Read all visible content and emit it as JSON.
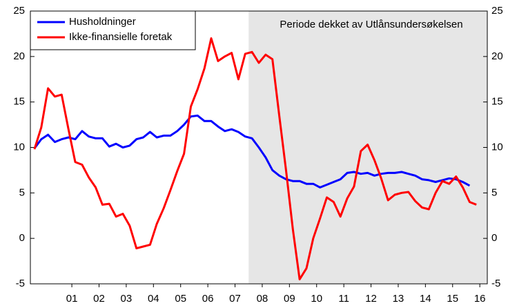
{
  "chart_data": {
    "type": "line",
    "annotation": "Periode dekket av Utlånsundersøkelsen",
    "shade": {
      "from": 2007.875,
      "color": "#e6e6e6"
    },
    "x": [
      2000,
      2000.25,
      2000.5,
      2000.75,
      2001,
      2001.25,
      2001.5,
      2001.75,
      2002,
      2002.25,
      2002.5,
      2002.75,
      2003,
      2003.25,
      2003.5,
      2003.75,
      2004,
      2004.25,
      2004.5,
      2004.75,
      2005,
      2005.25,
      2005.5,
      2005.75,
      2006,
      2006.25,
      2006.5,
      2006.75,
      2007,
      2007.25,
      2007.5,
      2007.75,
      2008,
      2008.25,
      2008.5,
      2008.75,
      2009,
      2009.25,
      2009.5,
      2009.75,
      2010,
      2010.25,
      2010.5,
      2010.75,
      2011,
      2011.25,
      2011.5,
      2011.75,
      2012,
      2012.25,
      2012.5,
      2012.75,
      2013,
      2013.25,
      2013.5,
      2013.75,
      2014,
      2014.25,
      2014.5,
      2014.75,
      2015,
      2015.25,
      2015.5,
      2015.75,
      2016,
      2016.25
    ],
    "series": [
      {
        "name": "Husholdninger",
        "color": "#0000ff",
        "values": [
          9.9,
          10.9,
          11.4,
          10.6,
          10.9,
          11.1,
          10.9,
          11.8,
          11.2,
          11.0,
          11.0,
          10.1,
          10.4,
          10.0,
          10.2,
          10.9,
          11.1,
          11.7,
          11.1,
          11.3,
          11.3,
          11.8,
          12.5,
          13.4,
          13.5,
          12.9,
          12.9,
          12.3,
          11.8,
          12.0,
          11.7,
          11.2,
          11.0,
          10.0,
          8.9,
          7.5,
          6.9,
          6.5,
          6.3,
          6.3,
          6.0,
          6.0,
          5.6,
          5.9,
          6.2,
          6.5,
          7.2,
          7.3,
          7.1,
          7.2,
          6.9,
          7.1,
          7.2,
          7.2,
          7.3,
          7.1,
          6.9,
          6.5,
          6.4,
          6.2,
          6.4,
          6.6,
          6.5,
          6.2,
          5.8,
          null
        ]
      },
      {
        "name": "Ikke-finansielle foretak",
        "color": "#ff0000",
        "values": [
          9.8,
          12.2,
          16.5,
          15.6,
          15.8,
          12.0,
          8.4,
          8.1,
          6.7,
          5.6,
          3.7,
          3.8,
          2.4,
          2.7,
          1.4,
          -1.1,
          -0.9,
          -0.7,
          1.6,
          3.3,
          5.3,
          7.4,
          9.3,
          14.5,
          16.4,
          18.7,
          22.0,
          19.5,
          20.0,
          20.4,
          17.5,
          20.3,
          20.5,
          19.3,
          20.2,
          19.7,
          13.5,
          7.5,
          1.0,
          -4.5,
          -3.3,
          0.0,
          2.2,
          4.5,
          4.0,
          2.4,
          4.4,
          5.7,
          9.6,
          10.3,
          8.6,
          6.6,
          4.2,
          4.8,
          5.0,
          5.1,
          4.1,
          3.4,
          3.2,
          5.0,
          6.3,
          6.0,
          6.8,
          5.6,
          4.0,
          3.7
        ]
      }
    ],
    "xlim": [
      1999.85,
      2016.65
    ],
    "xticks": [
      {
        "value": 2001.375,
        "label": "01"
      },
      {
        "value": 2002.375,
        "label": "02"
      },
      {
        "value": 2003.375,
        "label": "03"
      },
      {
        "value": 2004.375,
        "label": "04"
      },
      {
        "value": 2005.375,
        "label": "05"
      },
      {
        "value": 2006.375,
        "label": "06"
      },
      {
        "value": 2007.375,
        "label": "07"
      },
      {
        "value": 2008.375,
        "label": "08"
      },
      {
        "value": 2009.375,
        "label": "09"
      },
      {
        "value": 2010.375,
        "label": "10"
      },
      {
        "value": 2011.375,
        "label": "11"
      },
      {
        "value": 2012.375,
        "label": "12"
      },
      {
        "value": 2013.375,
        "label": "13"
      },
      {
        "value": 2014.375,
        "label": "14"
      },
      {
        "value": 2015.375,
        "label": "15"
      },
      {
        "value": 2016.375,
        "label": "16"
      }
    ],
    "ylim": [
      -5,
      25
    ],
    "yticks": [
      -5,
      0,
      5,
      10,
      15,
      20,
      25
    ],
    "y2lim": [
      -5,
      25
    ],
    "y2ticks": [
      -5,
      0,
      5,
      10,
      15,
      20,
      25
    ],
    "legend": "top-left"
  }
}
